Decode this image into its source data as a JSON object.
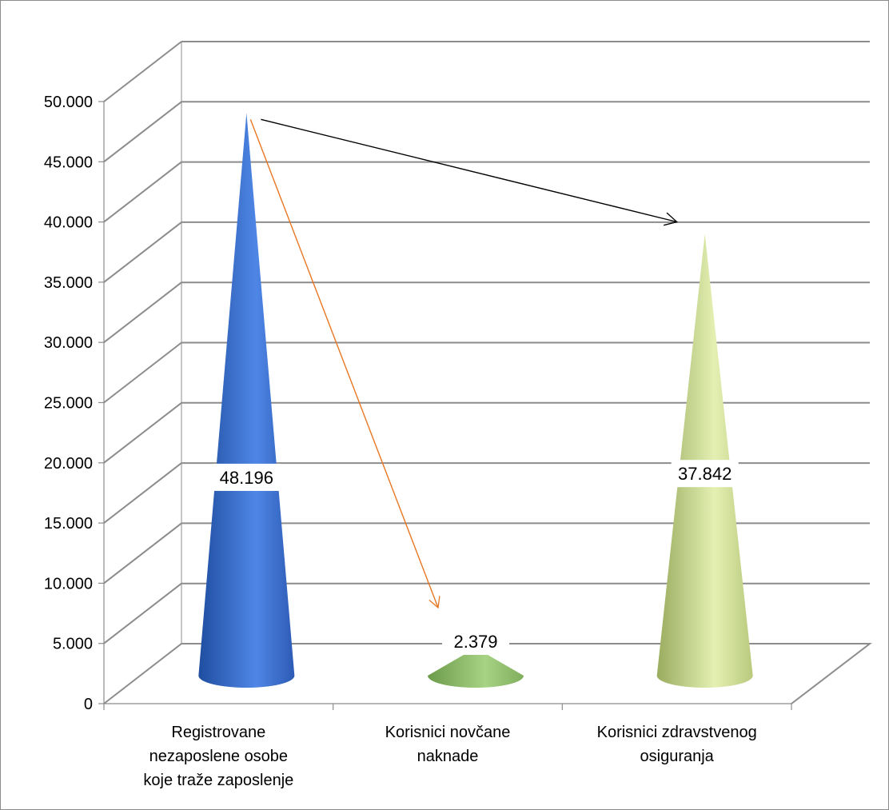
{
  "chart_data": {
    "type": "bar",
    "subtype": "3d-cone",
    "title": "",
    "xlabel": "",
    "ylabel": "",
    "ylim": [
      0,
      50000
    ],
    "y_ticks": [
      "0",
      "5.000",
      "10.000",
      "15.000",
      "20.000",
      "25.000",
      "30.000",
      "35.000",
      "40.000",
      "45.000",
      "50.000"
    ],
    "categories": [
      [
        "Registrovane",
        "nezaposlene osobe",
        "koje traže zaposlenje"
      ],
      [
        "Korisnici novčane",
        "naknade"
      ],
      [
        "Korisnici zdravstvenog",
        "osiguranja"
      ]
    ],
    "values": [
      48196,
      2379,
      37842
    ],
    "data_labels": [
      "48.196",
      "2.379",
      "37.842"
    ],
    "grid": true,
    "legend": "none",
    "colors": {
      "cone_1": "#4a7bd8",
      "cone_2": "#9ac775",
      "cone_3": "#d3e39b",
      "arrow_1": "#e87722",
      "arrow_2": "#000000",
      "gridline": "#8c8c8c"
    },
    "annotations": [
      {
        "type": "arrow",
        "from_category": 0,
        "to_category": 1,
        "color": "orange"
      },
      {
        "type": "arrow",
        "from_category": 0,
        "to_category": 2,
        "color": "black"
      }
    ]
  }
}
